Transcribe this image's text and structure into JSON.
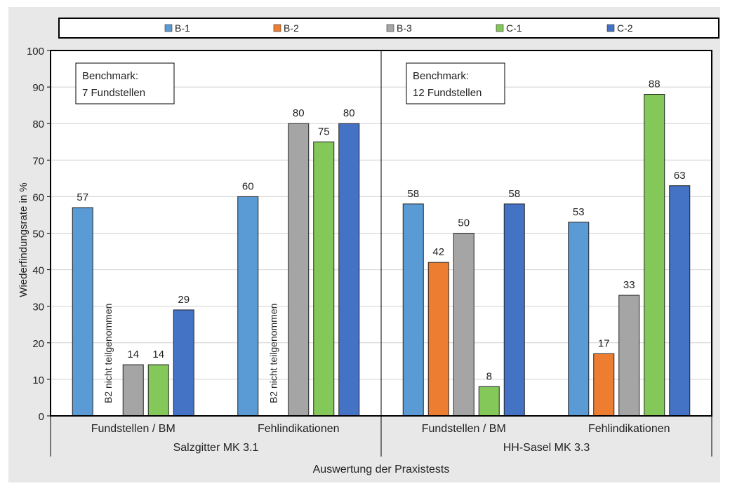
{
  "chart_data": {
    "type": "bar",
    "ylabel": "Wiederfindungsrate in %",
    "xlabel": "Auswertung der Praxistests",
    "ylim": [
      0,
      100
    ],
    "yticks": [
      "0",
      "10",
      "20",
      "30",
      "40",
      "50",
      "60",
      "70",
      "80",
      "90",
      "100"
    ],
    "grid": true,
    "legend_position": "top",
    "series_names": [
      "B-1",
      "B-2",
      "B-3",
      "C-1",
      "C-2"
    ],
    "colors": {
      "B-1": "#5b9bd5",
      "B-2": "#ed7d31",
      "B-3": "#a5a5a5",
      "C-1": "#85c85a",
      "C-2": "#4472c4"
    },
    "panels": [
      {
        "name": "Salzgitter MK 3.1",
        "benchmark_line1": "Benchmark:",
        "benchmark_line2": "7 Fundstellen",
        "groups": [
          {
            "label": "Fundstellen / BM",
            "values": [
              57,
              null,
              14,
              14,
              29
            ],
            "note": "B2 nicht teilgenommen"
          },
          {
            "label": "Fehlindikationen",
            "values": [
              60,
              null,
              80,
              75,
              80
            ],
            "note": "B2 nicht teilgenommen"
          }
        ]
      },
      {
        "name": "HH-Sasel MK 3.3",
        "benchmark_line1": "Benchmark:",
        "benchmark_line2": "12 Fundstellen",
        "groups": [
          {
            "label": "Fundstellen / BM",
            "values": [
              58,
              42,
              50,
              8,
              58
            ]
          },
          {
            "label": "Fehlindikationen",
            "values": [
              53,
              17,
              33,
              88,
              63
            ]
          }
        ]
      }
    ]
  }
}
